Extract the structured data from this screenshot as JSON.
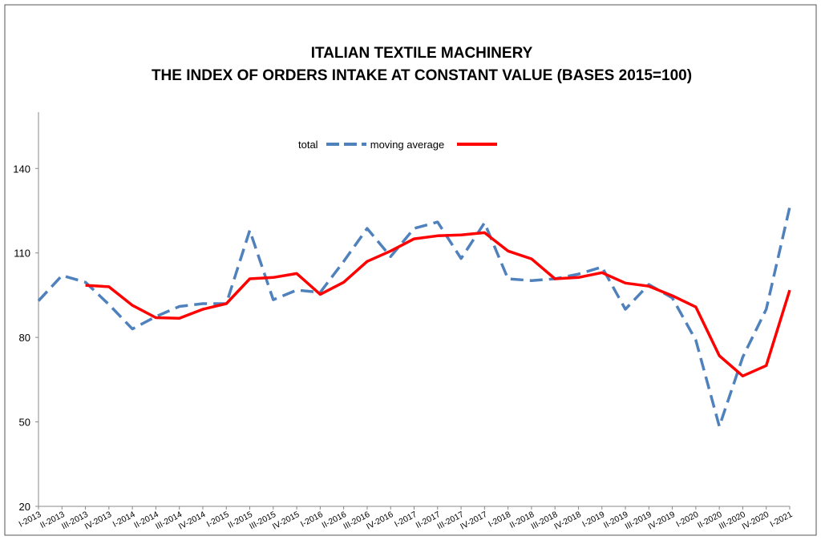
{
  "chart_data": {
    "type": "line",
    "title": [
      "ITALIAN TEXTILE MACHINERY",
      "THE INDEX OF ORDERS INTAKE AT CONSTANT VALUE (BASES 2015=100)"
    ],
    "categories": [
      "I-2013",
      "II-2013",
      "III-2013",
      "IV-2013",
      "I-2014",
      "II-2014",
      "III-2014",
      "IV-2014",
      "I-2015",
      "II-2015",
      "III-2015",
      "IV-2015",
      "I-2016",
      "II-2016",
      "III-2016",
      "IV-2016",
      "I-2017",
      "II-2017",
      "III-2017",
      "IV-2017",
      "I-2018",
      "II-2018",
      "III-2018",
      "IV-2018",
      "I-2019",
      "II-2019",
      "III-2019",
      "IV-2019",
      "I-2020",
      "II-2020",
      "III-2020",
      "IV-2020",
      "I-2021"
    ],
    "series": [
      {
        "name": "total",
        "color": "#4f81bd",
        "dashed": true,
        "values": [
          93,
          102,
          99.6,
          91.7,
          83,
          87.4,
          91,
          92,
          92,
          118,
          93.4,
          96.8,
          96,
          107,
          118.7,
          108.7,
          118.7,
          121,
          108,
          120.7,
          100.8,
          100.2,
          100.8,
          102.5,
          105,
          90,
          98.8,
          94,
          79,
          48.4,
          73,
          90,
          126.3
        ]
      },
      {
        "name": "moving average",
        "color": "#ff0000",
        "dashed": false,
        "values": [
          null,
          null,
          98.5,
          98,
          91.4,
          87,
          86.8,
          90,
          92,
          100.8,
          101.3,
          102.7,
          95.3,
          99.6,
          107,
          110.7,
          115,
          116.1,
          116.4,
          117.2,
          110.7,
          107.9,
          100.8,
          101.3,
          103,
          99.3,
          98.2,
          94.8,
          90.8,
          73.5,
          66.3,
          70,
          96.8
        ]
      }
    ],
    "ylim": [
      20,
      160
    ],
    "yticks": [
      20,
      50,
      80,
      110,
      140
    ],
    "grid": false
  }
}
